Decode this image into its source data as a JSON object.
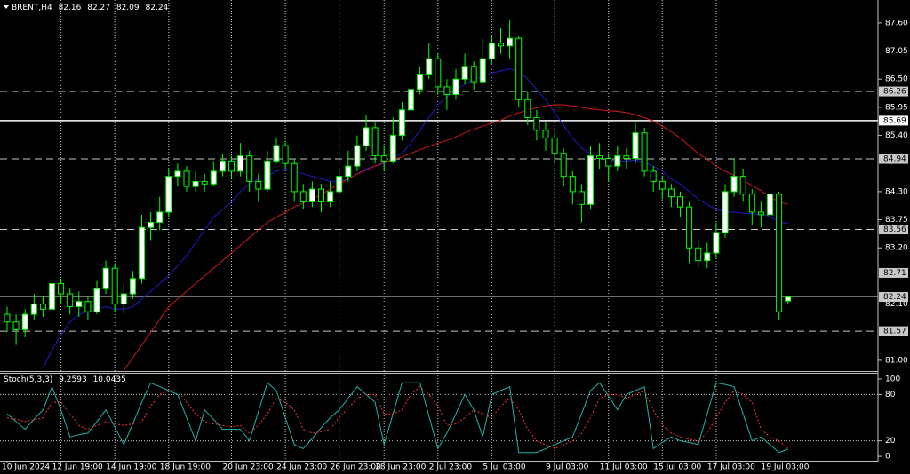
{
  "chart_data": [
    {
      "type": "candlestick",
      "symbol": "BRENT,H4",
      "categories": [
        "10 Jun 2024",
        null,
        null,
        null,
        null,
        null,
        "12 Jun 19:00",
        null,
        null,
        null,
        null,
        null,
        "14 Jun 19:00",
        null,
        null,
        null,
        null,
        null,
        "18 Jun 19:00",
        null,
        null,
        null,
        null,
        null,
        null,
        "20 Jun 23:00",
        null,
        null,
        null,
        null,
        null,
        "24 Jun 23:00",
        null,
        null,
        null,
        null,
        null,
        "26 Jun 23:00",
        null,
        null,
        null,
        null,
        "28 Jun 23:00",
        null,
        null,
        null,
        null,
        null,
        "2 Jul 23:00",
        null,
        null,
        null,
        null,
        null,
        "5 Jul 03:00",
        null,
        null,
        null,
        null,
        null,
        null,
        "9 Jul 03:00",
        null,
        null,
        null,
        null,
        null,
        "11 Jul 03:00",
        null,
        null,
        null,
        null,
        null,
        "15 Jul 03:00",
        null,
        null,
        null,
        null,
        null,
        "17 Jul 03:00",
        null,
        null,
        null,
        null,
        null,
        "19 Jul 03:00",
        null,
        null
      ],
      "open": [
        81.9,
        81.75,
        81.6,
        81.9,
        82.1,
        82.0,
        82.5,
        82.3,
        82.05,
        82.15,
        81.95,
        82.4,
        82.8,
        82.1,
        82.3,
        82.6,
        83.6,
        83.7,
        83.9,
        84.6,
        84.7,
        84.4,
        84.5,
        84.45,
        84.7,
        84.9,
        84.7,
        85.0,
        84.5,
        84.35,
        84.9,
        85.2,
        84.85,
        84.3,
        84.1,
        84.35,
        84.1,
        84.3,
        84.6,
        84.8,
        85.2,
        85.55,
        85.0,
        84.9,
        85.4,
        85.9,
        86.3,
        86.6,
        86.9,
        86.35,
        86.2,
        86.5,
        86.75,
        86.45,
        86.9,
        87.2,
        87.15,
        87.3,
        86.1,
        85.75,
        85.5,
        85.35,
        85.05,
        84.6,
        84.3,
        84.05,
        85.0,
        84.95,
        84.8,
        85.0,
        84.95,
        85.45,
        84.7,
        84.5,
        84.35,
        84.2,
        84.0,
        83.2,
        82.95,
        83.1,
        83.5,
        84.3,
        84.6,
        84.25,
        83.9,
        83.85,
        84.25,
        82.16
      ],
      "high": [
        82.05,
        81.9,
        82.0,
        82.3,
        82.25,
        82.85,
        82.6,
        82.4,
        82.35,
        82.25,
        82.55,
        82.95,
        82.9,
        82.5,
        82.75,
        83.85,
        83.9,
        84.2,
        84.75,
        84.85,
        84.8,
        84.7,
        84.65,
        84.9,
        85.05,
        85.0,
        85.25,
        85.1,
        84.65,
        85.1,
        85.35,
        85.3,
        84.95,
        84.45,
        84.5,
        84.45,
        84.5,
        84.75,
        85.1,
        85.4,
        85.8,
        85.65,
        85.2,
        85.75,
        86.05,
        86.5,
        86.75,
        87.2,
        87.0,
        86.5,
        86.7,
        87.0,
        86.85,
        87.3,
        87.35,
        87.5,
        87.65,
        87.35,
        86.25,
        85.9,
        85.65,
        85.45,
        85.15,
        84.7,
        84.45,
        85.2,
        85.25,
        85.05,
        85.2,
        85.15,
        85.65,
        85.55,
        84.8,
        84.6,
        84.45,
        84.3,
        84.1,
        83.35,
        83.3,
        83.7,
        84.45,
        84.95,
        84.75,
        84.35,
        84.1,
        84.45,
        84.3,
        82.27
      ],
      "low": [
        81.55,
        81.3,
        81.45,
        81.8,
        81.85,
        81.95,
        82.1,
        81.9,
        81.85,
        81.8,
        81.9,
        82.3,
        81.95,
        81.9,
        82.2,
        82.5,
        83.35,
        83.55,
        83.8,
        84.4,
        84.3,
        84.3,
        84.3,
        84.4,
        84.6,
        84.55,
        84.6,
        84.3,
        84.1,
        84.3,
        84.85,
        84.75,
        84.1,
        83.95,
        84.0,
        83.9,
        84.0,
        84.25,
        84.5,
        84.7,
        85.1,
        84.85,
        84.7,
        84.85,
        85.3,
        85.8,
        86.2,
        86.5,
        86.2,
        85.9,
        86.1,
        86.4,
        86.3,
        86.4,
        86.8,
        87.0,
        86.9,
        85.95,
        85.6,
        85.3,
        85.1,
        84.85,
        84.4,
        84.05,
        83.7,
        83.95,
        84.75,
        84.5,
        84.7,
        84.75,
        84.85,
        84.6,
        84.3,
        84.15,
        84.0,
        83.8,
        82.9,
        82.8,
        82.8,
        83.0,
        83.4,
        84.2,
        84.1,
        83.65,
        83.6,
        83.75,
        81.8,
        82.09
      ],
      "close": [
        81.75,
        81.6,
        81.9,
        82.1,
        82.0,
        82.5,
        82.3,
        82.05,
        82.15,
        81.95,
        82.4,
        82.8,
        82.1,
        82.3,
        82.6,
        83.6,
        83.7,
        83.9,
        84.6,
        84.7,
        84.4,
        84.5,
        84.45,
        84.7,
        84.9,
        84.7,
        85.0,
        84.5,
        84.35,
        84.9,
        85.2,
        84.85,
        84.3,
        84.1,
        84.35,
        84.1,
        84.3,
        84.6,
        84.8,
        85.2,
        85.55,
        85.0,
        84.9,
        85.4,
        85.9,
        86.3,
        86.6,
        86.9,
        86.35,
        86.2,
        86.5,
        86.75,
        86.45,
        86.9,
        87.2,
        87.15,
        87.3,
        86.1,
        85.75,
        85.5,
        85.35,
        85.05,
        84.6,
        84.3,
        84.05,
        85.0,
        84.95,
        84.8,
        85.0,
        84.95,
        85.45,
        84.7,
        84.5,
        84.35,
        84.2,
        84.0,
        83.2,
        82.95,
        83.1,
        83.5,
        84.3,
        84.6,
        84.25,
        83.9,
        83.85,
        84.25,
        81.95,
        82.24
      ],
      "up_color": "#00ff00",
      "bull_fill": "#ffffff",
      "bear_fill": "#000000",
      "lines": [
        {
          "color": "#1c1cc8",
          "values": [
            null,
            null,
            null,
            null,
            80.85,
            81.2,
            81.5,
            81.75,
            81.9,
            81.95,
            82.0,
            82.05,
            82.0,
            82.0,
            82.05,
            82.2,
            82.35,
            82.5,
            82.65,
            82.85,
            83.05,
            83.3,
            83.55,
            83.8,
            83.95,
            84.1,
            84.3,
            84.45,
            84.55,
            84.6,
            84.7,
            84.75,
            84.7,
            84.65,
            84.6,
            84.55,
            84.5,
            84.5,
            84.55,
            84.65,
            84.75,
            84.8,
            84.85,
            84.95,
            85.05,
            85.25,
            85.5,
            85.75,
            86.0,
            86.15,
            86.3,
            86.4,
            86.5,
            86.55,
            86.62,
            86.66,
            86.7,
            86.65,
            86.5,
            86.3,
            86.1,
            85.85,
            85.6,
            85.35,
            85.15,
            85.05,
            84.98,
            84.93,
            84.9,
            84.9,
            84.92,
            84.88,
            84.8,
            84.7,
            84.55,
            84.45,
            84.3,
            84.15,
            84.05,
            83.95,
            83.9,
            83.9,
            83.88,
            83.87,
            83.85,
            83.82,
            83.7,
            83.68
          ]
        },
        {
          "color": "#d01818",
          "values": [
            null,
            null,
            null,
            null,
            null,
            null,
            null,
            null,
            null,
            null,
            null,
            null,
            null,
            80.8,
            81.05,
            81.3,
            81.55,
            81.8,
            82.05,
            82.2,
            82.35,
            82.5,
            82.65,
            82.8,
            82.95,
            83.1,
            83.25,
            83.4,
            83.55,
            83.7,
            83.8,
            83.9,
            84.0,
            84.08,
            84.15,
            84.25,
            84.35,
            84.45,
            84.55,
            84.65,
            84.72,
            84.8,
            84.87,
            84.93,
            84.98,
            85.05,
            85.12,
            85.18,
            85.25,
            85.3,
            85.37,
            85.45,
            85.52,
            85.58,
            85.64,
            85.7,
            85.78,
            85.84,
            85.9,
            85.94,
            85.98,
            86.0,
            86.0,
            85.98,
            85.95,
            85.92,
            85.9,
            85.88,
            85.87,
            85.85,
            85.8,
            85.75,
            85.68,
            85.58,
            85.47,
            85.35,
            85.2,
            85.05,
            84.93,
            84.8,
            84.7,
            84.62,
            84.52,
            84.42,
            84.32,
            84.2,
            84.1,
            84.05
          ]
        }
      ],
      "levels": [
        {
          "value": 86.26,
          "style": "dashed",
          "color": "#c8c8c8",
          "box": "#c8c8c8"
        },
        {
          "value": 85.69,
          "style": "solid",
          "color": "#ffffff",
          "box": "#ffffff"
        },
        {
          "value": 84.94,
          "style": "dashed",
          "color": "#c8c8c8",
          "box": "#c8c8c8"
        },
        {
          "value": 83.56,
          "style": "dashed",
          "color": "#c8c8c8",
          "box": "#c8c8c8"
        },
        {
          "value": 82.71,
          "style": "dashed",
          "color": "#c8c8c8",
          "box": "#c8c8c8"
        },
        {
          "value": 82.24,
          "style": "thin",
          "color": "#707070",
          "box": "#c8c8c8"
        },
        {
          "value": 81.57,
          "style": "dashed",
          "color": "#c8c8c8",
          "box": "#c8c8c8"
        }
      ],
      "ylim": [
        80.79,
        88.05
      ],
      "yticks": [
        {
          "value": 81,
          "label": "81.00"
        },
        {
          "value": 82.1,
          "label": "82.10"
        },
        {
          "value": 83.2,
          "label": "83.20"
        },
        {
          "value": 83.75,
          "label": "83.75"
        },
        {
          "value": 84.3,
          "label": "84.30"
        },
        {
          "value": 85.4,
          "label": "85.40"
        },
        {
          "value": 85.95,
          "label": "85.95"
        },
        {
          "value": 86.5,
          "label": "86.50"
        },
        {
          "value": 87.05,
          "label": "87.05"
        },
        {
          "value": 87.6,
          "label": "87.60"
        }
      ]
    },
    {
      "type": "stochastic",
      "title": "Stoch(5,3,3)",
      "series": [
        {
          "color": "#20b2aa",
          "values": [
            55,
            45,
            35,
            48,
            60,
            90,
            60,
            25,
            28,
            30,
            45,
            60,
            38,
            15,
            42,
            70,
            95,
            90,
            85,
            80,
            50,
            20,
            60,
            48,
            35,
            35,
            35,
            20,
            58,
            95,
            85,
            50,
            15,
            10,
            23,
            37,
            50,
            60,
            75,
            90,
            80,
            70,
            15,
            55,
            95,
            95,
            95,
            52,
            10,
            30,
            55,
            80,
            60,
            25,
            80,
            85,
            90,
            5,
            5,
            5,
            10,
            15,
            20,
            25,
            55,
            85,
            95,
            78,
            60,
            80,
            85,
            90,
            10,
            18,
            25,
            20,
            18,
            15,
            55,
            95,
            93,
            90,
            55,
            20,
            25,
            15,
            5,
            9.2593
          ]
        },
        {
          "color": "#ff3030",
          "dash": true,
          "values": [
            50,
            48,
            45,
            47,
            50,
            70,
            70,
            55,
            40,
            35,
            40,
            45,
            42,
            40,
            42,
            45,
            65,
            80,
            85,
            85,
            70,
            55,
            45,
            42,
            40,
            38,
            40,
            30,
            40,
            55,
            75,
            70,
            60,
            35,
            30,
            32,
            35,
            50,
            62,
            75,
            80,
            80,
            55,
            55,
            60,
            80,
            90,
            80,
            65,
            40,
            42,
            50,
            60,
            55,
            50,
            65,
            75,
            60,
            35,
            20,
            15,
            10,
            15,
            20,
            30,
            50,
            75,
            80,
            80,
            75,
            80,
            85,
            60,
            40,
            30,
            25,
            22,
            20,
            30,
            50,
            70,
            85,
            80,
            70,
            35,
            25,
            20,
            10.0435
          ]
        }
      ],
      "levels": [
        80,
        20
      ],
      "ylim": [
        -6.8,
        108
      ],
      "yticks": [
        100,
        80,
        20,
        0
      ]
    }
  ]
}
